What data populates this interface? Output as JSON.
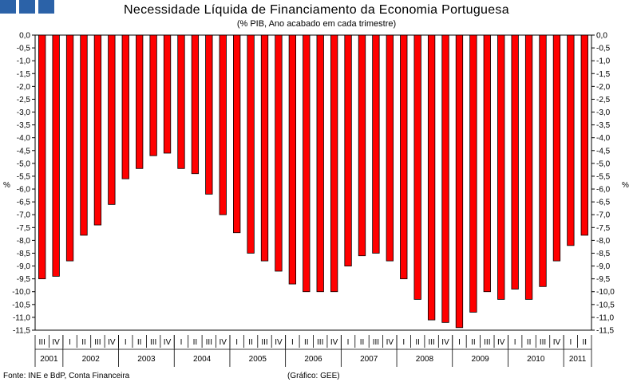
{
  "header": {
    "title": "Necessidade Líquida de Financiamento da Economia Portuguesa",
    "subtitle": "(% PIB, Ano acabado em cada trimestre)"
  },
  "footer": {
    "source": "Fonte: INE e BdP, Conta Financeira",
    "credit": "(Gráfico: GEE)"
  },
  "chart_data": {
    "type": "bar",
    "title": "Necessidade Líquida de Financiamento da Economia Portuguesa",
    "subtitle": "(% PIB, Ano acabado em cada trimestre)",
    "xlabel": "",
    "ylabel": "%",
    "ylabel_right": "%",
    "ylim": [
      -11.5,
      0
    ],
    "ytick_step": 0.5,
    "grid": false,
    "bar_color": "#ff0000",
    "categories": [
      "III",
      "IV",
      "I",
      "II",
      "III",
      "IV",
      "I",
      "II",
      "III",
      "IV",
      "I",
      "II",
      "III",
      "IV",
      "I",
      "II",
      "III",
      "IV",
      "I",
      "II",
      "III",
      "IV",
      "I",
      "II",
      "III",
      "IV",
      "I",
      "II",
      "III",
      "IV",
      "I",
      "II",
      "III",
      "IV",
      "I",
      "II",
      "III",
      "IV",
      "I",
      "II"
    ],
    "years": [
      {
        "label": "2001",
        "quarters": 2
      },
      {
        "label": "2002",
        "quarters": 4
      },
      {
        "label": "2003",
        "quarters": 4
      },
      {
        "label": "2004",
        "quarters": 4
      },
      {
        "label": "2005",
        "quarters": 4
      },
      {
        "label": "2006",
        "quarters": 4
      },
      {
        "label": "2007",
        "quarters": 4
      },
      {
        "label": "2008",
        "quarters": 4
      },
      {
        "label": "2009",
        "quarters": 4
      },
      {
        "label": "2010",
        "quarters": 4
      },
      {
        "label": "2011",
        "quarters": 2
      }
    ],
    "values": [
      -9.5,
      -9.4,
      -8.8,
      -7.8,
      -7.4,
      -6.6,
      -5.6,
      -5.2,
      -4.7,
      -4.6,
      -5.2,
      -5.4,
      -6.2,
      -7.0,
      -7.7,
      -8.5,
      -8.8,
      -9.2,
      -9.7,
      -10.0,
      -10.0,
      -10.0,
      -9.0,
      -8.6,
      -8.5,
      -8.8,
      -9.5,
      -10.3,
      -11.1,
      -11.2,
      -11.4,
      -10.8,
      -10.0,
      -10.3,
      -9.9,
      -10.3,
      -9.8,
      -8.8,
      -8.2,
      -7.8
    ],
    "yticks": [
      "0,0",
      "-0,5",
      "-1,0",
      "-1,5",
      "-2,0",
      "-2,5",
      "-3,0",
      "-3,5",
      "-4,0",
      "-4,5",
      "-5,0",
      "-5,5",
      "-6,0",
      "-6,5",
      "-7,0",
      "-7,5",
      "-8,0",
      "-8,5",
      "-9,0",
      "-9,5",
      "-10,0",
      "-10,5",
      "-11,0",
      "-11,5"
    ]
  }
}
